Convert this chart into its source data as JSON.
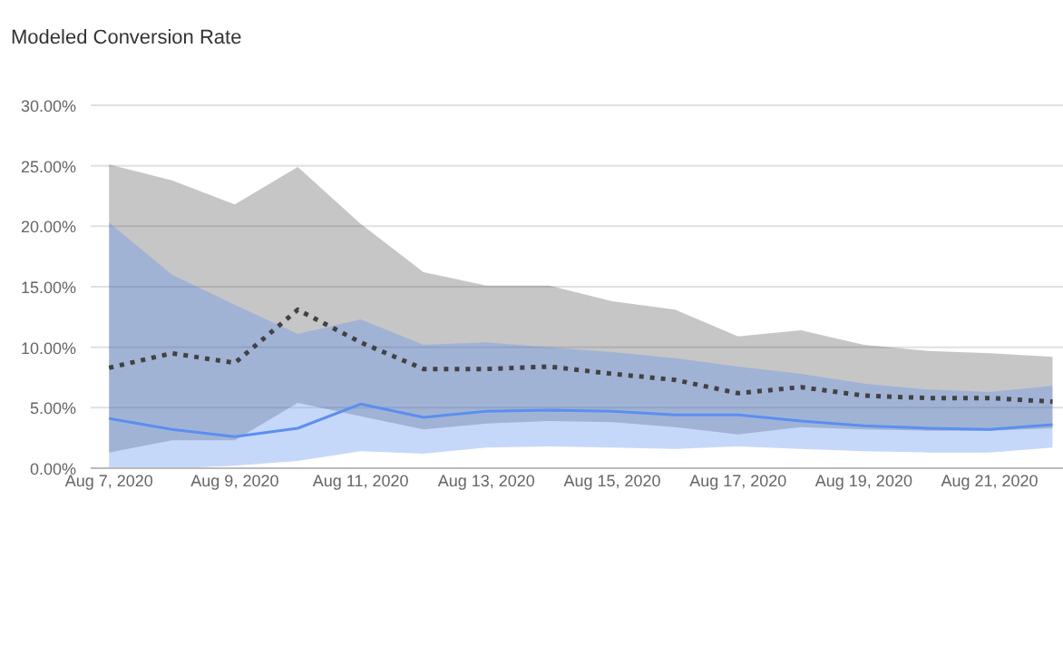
{
  "chart_data": {
    "type": "line",
    "title": "Modeled Conversion Rate",
    "x": [
      "2020-08-07",
      "2020-08-08",
      "2020-08-09",
      "2020-08-10",
      "2020-08-11",
      "2020-08-12",
      "2020-08-13",
      "2020-08-14",
      "2020-08-15",
      "2020-08-16",
      "2020-08-17",
      "2020-08-18",
      "2020-08-19",
      "2020-08-20",
      "2020-08-21",
      "2020-08-22"
    ],
    "series": [
      {
        "color": "#424242",
        "line_style": "dotted",
        "values": [
          8.3,
          9.5,
          8.7,
          13.1,
          10.4,
          8.2,
          8.2,
          8.4,
          7.8,
          7.3,
          6.2,
          6.7,
          6.0,
          5.8,
          5.8,
          5.5
        ],
        "lower": [
          1.3,
          2.3,
          2.3,
          5.4,
          4.3,
          3.2,
          3.7,
          3.9,
          3.8,
          3.4,
          2.8,
          3.4,
          3.2,
          3.1,
          3.1,
          3.3
        ],
        "upper": [
          25.1,
          23.8,
          21.8,
          24.9,
          20.2,
          16.2,
          15.1,
          15.1,
          13.8,
          13.1,
          10.9,
          11.4,
          10.2,
          9.7,
          9.5,
          9.2
        ]
      },
      {
        "color": "#5b8ff0",
        "line_style": "solid",
        "values": [
          4.1,
          3.2,
          2.6,
          3.3,
          5.3,
          4.2,
          4.7,
          4.8,
          4.7,
          4.4,
          4.4,
          3.9,
          3.5,
          3.3,
          3.2,
          3.6
        ],
        "lower": [
          0,
          0,
          0.2,
          0.6,
          1.4,
          1.2,
          1.7,
          1.8,
          1.7,
          1.6,
          1.8,
          1.6,
          1.4,
          1.3,
          1.3,
          1.7
        ],
        "upper": [
          20.3,
          16.0,
          13.5,
          11.1,
          12.3,
          10.2,
          10.4,
          10.0,
          9.6,
          9.1,
          8.4,
          7.8,
          7.0,
          6.5,
          6.3,
          6.8
        ]
      }
    ],
    "xlim": [
      "2020-08-06T17:00",
      "2020-08-22T04:00"
    ],
    "xticks": [
      {
        "value": "2020-08-07",
        "label": "Aug 7, 2020"
      },
      {
        "value": "2020-08-09",
        "label": "Aug 9, 2020"
      },
      {
        "value": "2020-08-11",
        "label": "Aug 11, 2020"
      },
      {
        "value": "2020-08-13",
        "label": "Aug 13, 2020"
      },
      {
        "value": "2020-08-15",
        "label": "Aug 15, 2020"
      },
      {
        "value": "2020-08-17",
        "label": "Aug 17, 2020"
      },
      {
        "value": "2020-08-19",
        "label": "Aug 19, 2020"
      },
      {
        "value": "2020-08-21",
        "label": "Aug 21, 2020"
      }
    ],
    "ylim": [
      0,
      30
    ],
    "yticks": [
      {
        "value": 0,
        "label": "0.00%"
      },
      {
        "value": 5,
        "label": "5.00%"
      },
      {
        "value": 10,
        "label": "10.00%"
      },
      {
        "value": 15,
        "label": "15.00%"
      },
      {
        "value": 20,
        "label": "20.00%"
      },
      {
        "value": 25,
        "label": "25.00%"
      },
      {
        "value": 30,
        "label": "30.00%"
      }
    ],
    "grid": "y",
    "marker": "none"
  }
}
